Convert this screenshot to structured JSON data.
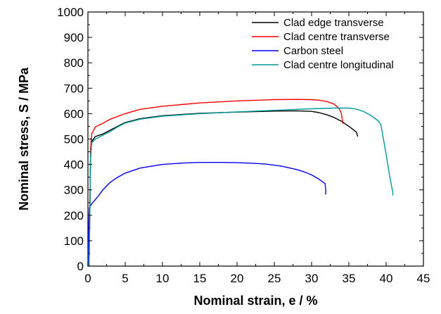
{
  "chart_data": {
    "type": "line",
    "title": "",
    "xlabel": "Nominal strain, e / %",
    "ylabel": "Nominal stress, S / MPa",
    "xlim": [
      0,
      45
    ],
    "ylim": [
      0,
      1000
    ],
    "xticks": [
      0,
      5,
      10,
      15,
      20,
      25,
      30,
      35,
      40,
      45
    ],
    "yticks": [
      0,
      100,
      200,
      300,
      400,
      500,
      600,
      700,
      800,
      900,
      1000
    ],
    "grid": false,
    "legend_position": "top-right",
    "series": [
      {
        "name": "Clad edge transverse",
        "color": "#000000",
        "points": [
          [
            0.15,
            0
          ],
          [
            0.25,
            200
          ],
          [
            0.35,
            420
          ],
          [
            0.5,
            490
          ],
          [
            1,
            510
          ],
          [
            2,
            520
          ],
          [
            3,
            535
          ],
          [
            4,
            550
          ],
          [
            5,
            565
          ],
          [
            7,
            580
          ],
          [
            10,
            592
          ],
          [
            15,
            601
          ],
          [
            20,
            606
          ],
          [
            25,
            610
          ],
          [
            28,
            611
          ],
          [
            30,
            609
          ],
          [
            31,
            604
          ],
          [
            32,
            596
          ],
          [
            33,
            585
          ],
          [
            34,
            570
          ],
          [
            35,
            550
          ],
          [
            36,
            528
          ],
          [
            36.2,
            510
          ]
        ]
      },
      {
        "name": "Clad centre transverse",
        "color": "#ff0000",
        "points": [
          [
            0.15,
            0
          ],
          [
            0.25,
            200
          ],
          [
            0.35,
            460
          ],
          [
            0.5,
            520
          ],
          [
            1,
            548
          ],
          [
            2,
            562
          ],
          [
            3,
            578
          ],
          [
            5,
            600
          ],
          [
            7,
            617
          ],
          [
            10,
            629
          ],
          [
            15,
            642
          ],
          [
            20,
            650
          ],
          [
            25,
            655
          ],
          [
            28,
            656
          ],
          [
            30,
            655
          ],
          [
            31,
            653
          ],
          [
            32,
            648
          ],
          [
            33,
            638
          ],
          [
            33.7,
            620
          ],
          [
            34,
            600
          ],
          [
            34.2,
            560
          ]
        ]
      },
      {
        "name": "Carbon steel",
        "color": "#0000ff",
        "points": [
          [
            0,
            0
          ],
          [
            0.1,
            150
          ],
          [
            0.2,
            230
          ],
          [
            0.5,
            245
          ],
          [
            1,
            262
          ],
          [
            1.5,
            280
          ],
          [
            2,
            300
          ],
          [
            3,
            330
          ],
          [
            4,
            350
          ],
          [
            5,
            366
          ],
          [
            7,
            386
          ],
          [
            10,
            400
          ],
          [
            13,
            406
          ],
          [
            15,
            408
          ],
          [
            18,
            408
          ],
          [
            20,
            407
          ],
          [
            22,
            405
          ],
          [
            24,
            401
          ],
          [
            26,
            393
          ],
          [
            28,
            380
          ],
          [
            29,
            371
          ],
          [
            30,
            359
          ],
          [
            31,
            342
          ],
          [
            31.8,
            325
          ],
          [
            31.9,
            300
          ],
          [
            31.9,
            282
          ]
        ]
      },
      {
        "name": "Clad centre longitudinal",
        "color": "#009999",
        "points": [
          [
            0.15,
            0
          ],
          [
            0.25,
            200
          ],
          [
            0.35,
            430
          ],
          [
            0.5,
            485
          ],
          [
            1,
            500
          ],
          [
            2,
            515
          ],
          [
            3,
            530
          ],
          [
            4,
            548
          ],
          [
            5,
            563
          ],
          [
            7,
            578
          ],
          [
            10,
            590
          ],
          [
            15,
            600
          ],
          [
            20,
            607
          ],
          [
            25,
            613
          ],
          [
            30,
            619
          ],
          [
            33,
            622
          ],
          [
            35,
            622
          ],
          [
            36,
            618
          ],
          [
            37,
            608
          ],
          [
            38,
            592
          ],
          [
            39,
            570
          ],
          [
            39.3,
            555
          ],
          [
            40,
            440
          ],
          [
            40.5,
            350
          ],
          [
            40.9,
            290
          ],
          [
            40.9,
            278
          ]
        ]
      }
    ]
  }
}
